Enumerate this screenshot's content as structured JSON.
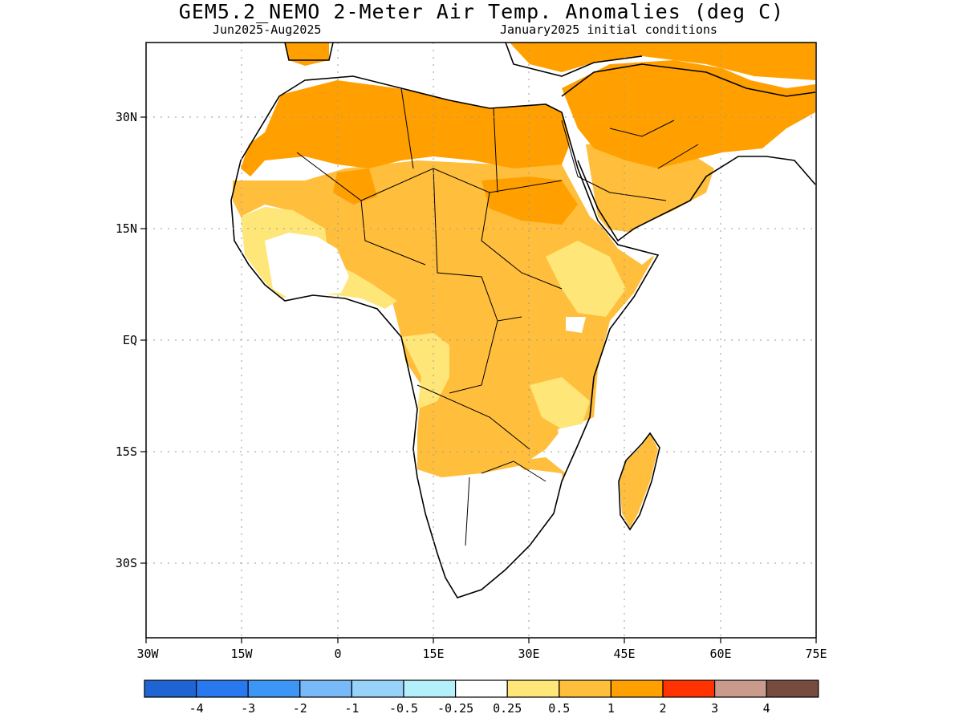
{
  "header": {
    "title": "GEM5.2_NEMO 2-Meter Air Temp. Anomalies (deg C)",
    "period": "Jun2025-Aug2025",
    "init": "January2025 initial conditions"
  },
  "axes": {
    "lon_labels": [
      "30W",
      "15W",
      "0",
      "15E",
      "30E",
      "45E",
      "60E",
      "75E"
    ],
    "lat_labels": [
      "30N",
      "15N",
      "EQ",
      "15S",
      "30S"
    ],
    "lon_range": [
      -30,
      75
    ],
    "lat_range": [
      -40,
      40
    ],
    "grid": true
  },
  "colorbar": {
    "colors": [
      "#1e64d2",
      "#2878f0",
      "#3c96f5",
      "#78b9fa",
      "#96d2fa",
      "#b4f0fa",
      "#ffffff",
      "#ffe678",
      "#ffbe3c",
      "#ffa000",
      "#ff3200",
      "#c89b8c",
      "#784b41"
    ],
    "labels": [
      "-4",
      "-3",
      "-2",
      "-1",
      "-0.5",
      "-0.25",
      "0.25",
      "0.5",
      "1",
      "2",
      "3",
      "4"
    ]
  },
  "map": {
    "region": "Africa and Arabian Peninsula",
    "anomaly_regions": [
      {
        "area": "Sahara and North Africa",
        "category": "1-2"
      },
      {
        "area": "Arabian Peninsula",
        "category": "1-2"
      },
      {
        "area": "Sahel and Sudan",
        "category": "1-2"
      },
      {
        "area": "Central Africa",
        "category": "0.5-1"
      },
      {
        "area": "East Africa",
        "category": "0.5-1"
      },
      {
        "area": "Angola and Zambia",
        "category": "0.5-1"
      },
      {
        "area": "Madagascar",
        "category": "0.5-1"
      },
      {
        "area": "Gulf of Guinea coast",
        "category": "0.25-0.5"
      },
      {
        "area": "Southern Africa",
        "category": "-0.25-0.25"
      }
    ]
  }
}
